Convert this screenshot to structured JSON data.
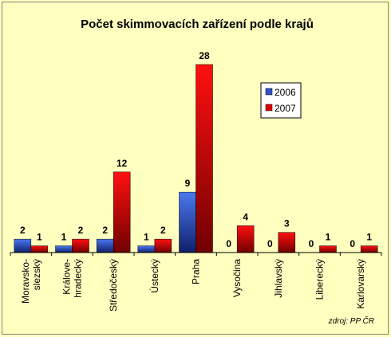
{
  "chart_data": {
    "type": "bar",
    "title": "Počet skimmovacích zařízení podle krajů",
    "categories": [
      [
        "Moravsko-",
        "slezský"
      ],
      [
        "Králove-",
        "hradecký"
      ],
      [
        "Středočeský"
      ],
      [
        "Ústecký"
      ],
      [
        "Praha"
      ],
      [
        "Vysočina"
      ],
      [
        "Jihlavský"
      ],
      [
        "Liberecký"
      ],
      [
        "Karlovarský"
      ]
    ],
    "series": [
      {
        "name": "2006",
        "values": [
          2,
          1,
          2,
          1,
          9,
          0,
          0,
          0,
          0
        ],
        "color": "#2e54c8"
      },
      {
        "name": "2007",
        "values": [
          1,
          2,
          12,
          2,
          28,
          4,
          3,
          1,
          1
        ],
        "color": "#e00000"
      }
    ],
    "ylim": [
      0,
      28
    ],
    "legend_position": "top-right",
    "grid": false
  },
  "source": "zdroj: PP ČR"
}
